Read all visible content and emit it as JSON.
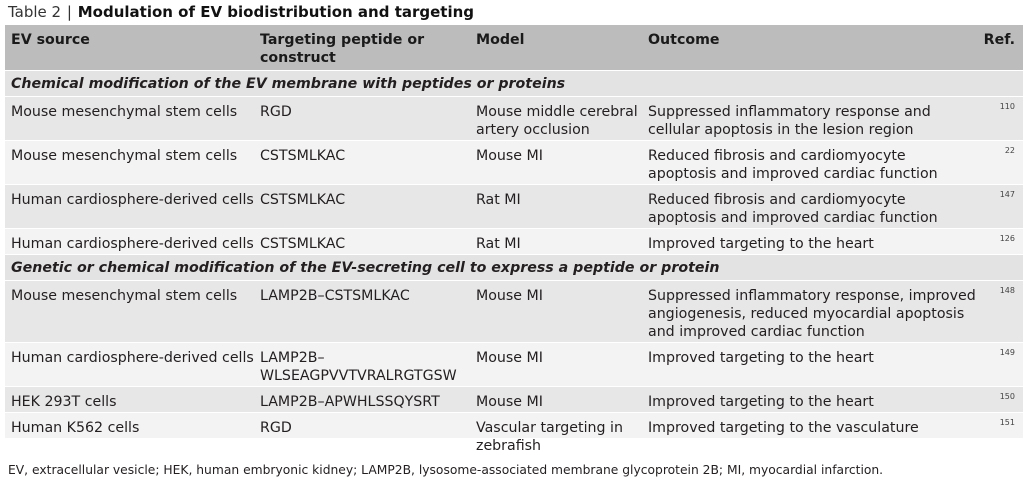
{
  "title": {
    "label": "Table 2",
    "separator": "|",
    "text": "Modulation of EV biodistribution and targeting"
  },
  "headers": [
    "EV source",
    "Targeting peptide or\nconstruct",
    "Model",
    "Outcome",
    "Ref."
  ],
  "sections": [
    {
      "heading": "Chemical modification of the EV membrane with peptides or proteins",
      "rows": [
        {
          "source": "Mouse mesenchymal stem cells",
          "construct": "RGD",
          "model": "Mouse middle cerebral\nartery occlusion",
          "outcome": "Suppressed inflammatory response and\ncellular apoptosis in the lesion region",
          "ref": "110"
        },
        {
          "source": "Mouse mesenchymal stem cells",
          "construct": "CSTSMLKAC",
          "model": "Mouse MI",
          "outcome": "Reduced fibrosis and cardiomyocyte\napoptosis and improved cardiac function",
          "ref": "22"
        },
        {
          "source": "Human cardiosphere-derived cells",
          "construct": "CSTSMLKAC",
          "model": "Rat MI",
          "outcome": "Reduced fibrosis and cardiomyocyte\napoptosis and improved cardiac function",
          "ref": "147"
        },
        {
          "source": "Human cardiosphere-derived cells",
          "construct": "CSTSMLKAC",
          "model": "Rat MI",
          "outcome": "Improved targeting to the heart",
          "ref": "126"
        }
      ]
    },
    {
      "heading": "Genetic or chemical modification of the EV-secreting cell to express a peptide or protein",
      "rows": [
        {
          "source": "Mouse mesenchymal stem cells",
          "construct": "LAMP2B–CSTSMLKAC",
          "model": "Mouse MI",
          "outcome": "Suppressed inflammatory response, improved\nangiogenesis, reduced myocardial apoptosis\nand improved cardiac function",
          "ref": "148"
        },
        {
          "source": "Human cardiosphere-derived cells",
          "construct": "LAMP2B–\nWLSEAGPVVTVRALRGTGSW",
          "model": "Mouse MI",
          "outcome": "Improved targeting to the heart",
          "ref": "149"
        },
        {
          "source": "HEK 293T cells",
          "construct": "LAMP2B–APWHLSSQYSRT",
          "model": "Mouse MI",
          "outcome": "Improved targeting to the heart",
          "ref": "150"
        },
        {
          "source": "Human K562 cells",
          "construct": "RGD",
          "model": "Vascular targeting in\nzebrafish",
          "outcome": "Improved targeting to the vasculature",
          "ref": "151"
        }
      ]
    }
  ],
  "footnote": "EV, extracellular vesicle; HEK, human embryonic kidney; LAMP2B, lysosome-associated membrane glycoprotein 2B; MI, myocardial infarction."
}
